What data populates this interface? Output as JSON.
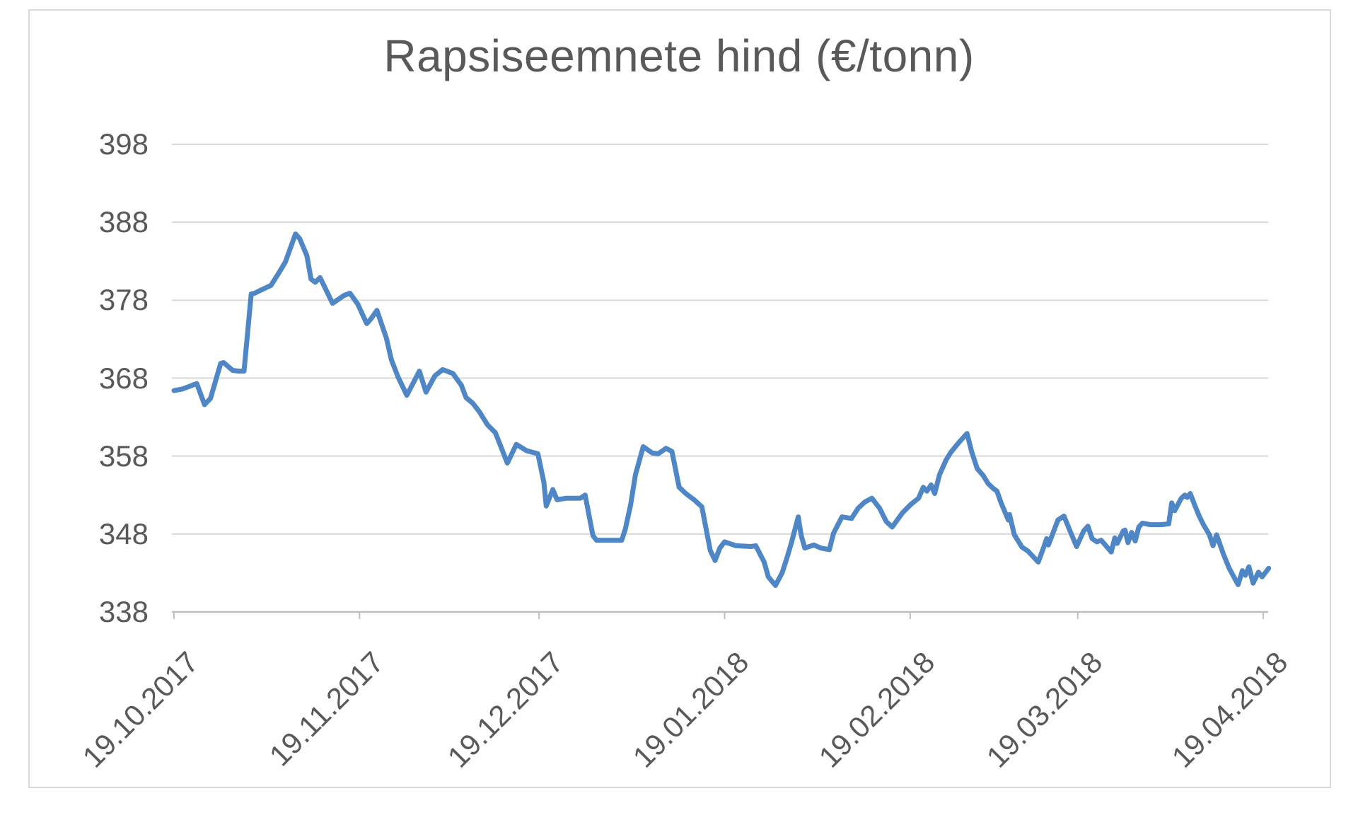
{
  "chart_data": {
    "type": "line",
    "title": "Rapsiseemnete hind (€/tonn)",
    "xlabel": "",
    "ylabel": "",
    "legend": "none",
    "grid": true,
    "colors": {
      "line": "#4f86c6",
      "gridline": "#d9d9d9",
      "axis_line": "#bfbfbf",
      "tick_text": "#595959",
      "title_text": "#595959",
      "chart_border": "#d9d9d9",
      "background": "#ffffff"
    },
    "y_axis": {
      "min": 338,
      "max": 398,
      "step": 10,
      "tick_labels": [
        "398",
        "388",
        "378",
        "368",
        "358",
        "348",
        "338"
      ]
    },
    "x_axis": {
      "unit": "days from 19.10.2017",
      "range_days": [
        0,
        183
      ],
      "ticks": [
        {
          "day": 0,
          "label": "19.10.2017"
        },
        {
          "day": 31,
          "label": "19.11.2017"
        },
        {
          "day": 61,
          "label": "19.12.2017"
        },
        {
          "day": 92,
          "label": "19.01.2018"
        },
        {
          "day": 123,
          "label": "19.02.2018"
        },
        {
          "day": 151,
          "label": "19.03.2018"
        },
        {
          "day": 182,
          "label": "19.04.2018"
        }
      ]
    },
    "series": [
      {
        "name": "Rapsiseemnete hind (€/tonn)",
        "points_day_value": [
          [
            0,
            366.4
          ],
          [
            1.4,
            366.6
          ],
          [
            3.8,
            367.3
          ],
          [
            5.1,
            364.6
          ],
          [
            6.1,
            365.4
          ],
          [
            7.8,
            369.9
          ],
          [
            8.3,
            370.0
          ],
          [
            9.8,
            369.0
          ],
          [
            10.8,
            368.9
          ],
          [
            11.7,
            368.9
          ],
          [
            12.9,
            378.8
          ],
          [
            13.5,
            378.9
          ],
          [
            14.8,
            379.4
          ],
          [
            16.2,
            379.9
          ],
          [
            17.6,
            381.6
          ],
          [
            18.6,
            382.9
          ],
          [
            20.3,
            386.5
          ],
          [
            21.0,
            385.9
          ],
          [
            22.2,
            383.7
          ],
          [
            22.9,
            380.7
          ],
          [
            23.6,
            380.3
          ],
          [
            24.4,
            380.9
          ],
          [
            26.5,
            377.6
          ],
          [
            28.4,
            378.6
          ],
          [
            29.4,
            378.9
          ],
          [
            30.7,
            377.5
          ],
          [
            32.2,
            375.0
          ],
          [
            32.9,
            375.6
          ],
          [
            33.9,
            376.7
          ],
          [
            35.5,
            373.1
          ],
          [
            36.3,
            370.4
          ],
          [
            37.4,
            368.2
          ],
          [
            38.9,
            365.8
          ],
          [
            41.0,
            368.9
          ],
          [
            42.1,
            366.2
          ],
          [
            43.6,
            368.3
          ],
          [
            44.9,
            369.1
          ],
          [
            46.6,
            368.6
          ],
          [
            48.0,
            367.1
          ],
          [
            48.8,
            365.5
          ],
          [
            49.9,
            364.8
          ],
          [
            51.0,
            363.7
          ],
          [
            52.4,
            362.0
          ],
          [
            53.7,
            361.0
          ],
          [
            55.7,
            357.1
          ],
          [
            57.2,
            359.5
          ],
          [
            58.9,
            358.7
          ],
          [
            60.8,
            358.3
          ],
          [
            61.8,
            354.6
          ],
          [
            62.2,
            351.6
          ],
          [
            63.3,
            353.7
          ],
          [
            64.0,
            352.4
          ],
          [
            65.5,
            352.6
          ],
          [
            67.9,
            352.6
          ],
          [
            68.7,
            353.0
          ],
          [
            70.0,
            347.8
          ],
          [
            70.6,
            347.2
          ],
          [
            74.8,
            347.2
          ],
          [
            75.4,
            348.6
          ],
          [
            76.3,
            351.8
          ],
          [
            77.1,
            355.6
          ],
          [
            78.4,
            359.2
          ],
          [
            79.9,
            358.4
          ],
          [
            80.9,
            358.3
          ],
          [
            82.2,
            359.0
          ],
          [
            83.2,
            358.6
          ],
          [
            84.4,
            354.0
          ],
          [
            85.5,
            353.2
          ],
          [
            86.9,
            352.4
          ],
          [
            88.2,
            351.5
          ],
          [
            89.6,
            345.9
          ],
          [
            90.4,
            344.6
          ],
          [
            91.2,
            346.2
          ],
          [
            92.0,
            347.0
          ],
          [
            93.9,
            346.5
          ],
          [
            96.4,
            346.4
          ],
          [
            97.2,
            346.5
          ],
          [
            98.6,
            344.4
          ],
          [
            99.3,
            342.5
          ],
          [
            100.5,
            341.4
          ],
          [
            101.6,
            343.0
          ],
          [
            102.4,
            344.9
          ],
          [
            103.2,
            347.0
          ],
          [
            104.3,
            350.2
          ],
          [
            104.8,
            347.8
          ],
          [
            105.4,
            346.2
          ],
          [
            106.9,
            346.6
          ],
          [
            108.1,
            346.2
          ],
          [
            109.5,
            346.0
          ],
          [
            110.2,
            348.1
          ],
          [
            111.6,
            350.2
          ],
          [
            113.2,
            350.0
          ],
          [
            114.3,
            351.3
          ],
          [
            115.4,
            352.1
          ],
          [
            116.6,
            352.6
          ],
          [
            117.9,
            351.3
          ],
          [
            119.0,
            349.6
          ],
          [
            120.0,
            348.9
          ],
          [
            121.7,
            350.7
          ],
          [
            123.1,
            351.8
          ],
          [
            124.4,
            352.6
          ],
          [
            125.2,
            354.0
          ],
          [
            125.8,
            353.5
          ],
          [
            126.5,
            354.3
          ],
          [
            127.1,
            353.2
          ],
          [
            127.9,
            355.6
          ],
          [
            129.0,
            357.5
          ],
          [
            129.8,
            358.5
          ],
          [
            131.2,
            359.8
          ],
          [
            132.5,
            360.9
          ],
          [
            133.3,
            358.5
          ],
          [
            134.2,
            356.4
          ],
          [
            135.2,
            355.5
          ],
          [
            136.0,
            354.5
          ],
          [
            136.8,
            353.9
          ],
          [
            137.5,
            353.5
          ],
          [
            138.2,
            352.0
          ],
          [
            139.4,
            349.8
          ],
          [
            139.6,
            350.5
          ],
          [
            140.4,
            347.9
          ],
          [
            141.7,
            346.3
          ],
          [
            142.7,
            345.8
          ],
          [
            144.4,
            344.4
          ],
          [
            145.4,
            346.5
          ],
          [
            145.8,
            347.4
          ],
          [
            146.1,
            346.6
          ],
          [
            147.0,
            348.4
          ],
          [
            147.7,
            349.8
          ],
          [
            148.7,
            350.3
          ],
          [
            149.6,
            348.6
          ],
          [
            150.2,
            347.5
          ],
          [
            150.8,
            346.4
          ],
          [
            152.0,
            348.4
          ],
          [
            152.7,
            349.0
          ],
          [
            153.4,
            347.4
          ],
          [
            154.2,
            347.0
          ],
          [
            154.9,
            347.2
          ],
          [
            155.6,
            346.6
          ],
          [
            156.6,
            345.7
          ],
          [
            157.2,
            347.5
          ],
          [
            157.6,
            346.8
          ],
          [
            158.6,
            348.4
          ],
          [
            158.9,
            348.5
          ],
          [
            159.4,
            346.9
          ],
          [
            160.0,
            348.2
          ],
          [
            160.6,
            347.1
          ],
          [
            161.2,
            348.9
          ],
          [
            161.8,
            349.4
          ],
          [
            163.1,
            349.2
          ],
          [
            164.9,
            349.2
          ],
          [
            166.2,
            349.3
          ],
          [
            166.7,
            352.0
          ],
          [
            167.2,
            351.0
          ],
          [
            168.3,
            352.6
          ],
          [
            168.9,
            353.0
          ],
          [
            169.3,
            352.7
          ],
          [
            169.8,
            353.2
          ],
          [
            170.6,
            351.6
          ],
          [
            171.3,
            350.3
          ],
          [
            172.0,
            349.2
          ],
          [
            173.0,
            347.9
          ],
          [
            173.6,
            346.5
          ],
          [
            174.2,
            347.9
          ],
          [
            175.3,
            345.5
          ],
          [
            176.3,
            343.6
          ],
          [
            177.8,
            341.5
          ],
          [
            178.5,
            343.3
          ],
          [
            179.0,
            342.7
          ],
          [
            179.6,
            343.8
          ],
          [
            180.3,
            341.7
          ],
          [
            181.2,
            343.1
          ],
          [
            181.8,
            342.5
          ],
          [
            182.9,
            343.6
          ]
        ]
      }
    ]
  }
}
